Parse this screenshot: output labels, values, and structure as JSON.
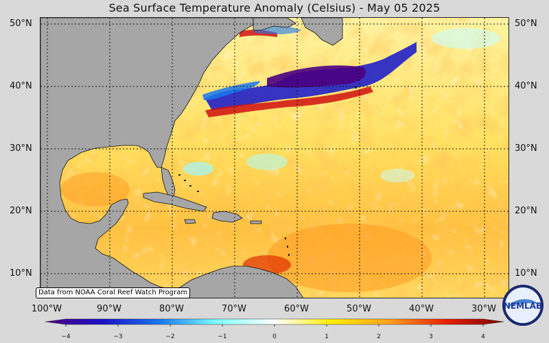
{
  "title": "Sea Surface Temperature Anomaly (Celsius) - May 05 2025",
  "credit": "Data from NOAA Coral Reef Watch Program",
  "logo_text": "NEMLAB",
  "lat_labels": [
    "50°N",
    "40°N",
    "30°N",
    "20°N",
    "10°N"
  ],
  "lon_labels": [
    "100°W",
    "90°W",
    "80°W",
    "70°W",
    "60°W",
    "50°W",
    "40°W",
    "30°W"
  ],
  "colorbar": {
    "ticks": [
      "−4",
      "−3",
      "−2",
      "−1",
      "0",
      "1",
      "2",
      "3",
      "4"
    ],
    "min": -4,
    "max": 4,
    "stops": [
      {
        "v": -4,
        "color": "#4b0082"
      },
      {
        "v": -3,
        "color": "#1a10c8"
      },
      {
        "v": -2,
        "color": "#1a78f0"
      },
      {
        "v": -1,
        "color": "#7fffff"
      },
      {
        "v": 0,
        "color": "#ffffff"
      },
      {
        "v": 1,
        "color": "#ffee00"
      },
      {
        "v": 2,
        "color": "#ffa020"
      },
      {
        "v": 3,
        "color": "#e82000"
      },
      {
        "v": 4,
        "color": "#7a0000"
      }
    ]
  },
  "colors": {
    "land": "#a6a6a6",
    "background": "#d9d9d9",
    "ocean_base": "#ffe080"
  }
}
